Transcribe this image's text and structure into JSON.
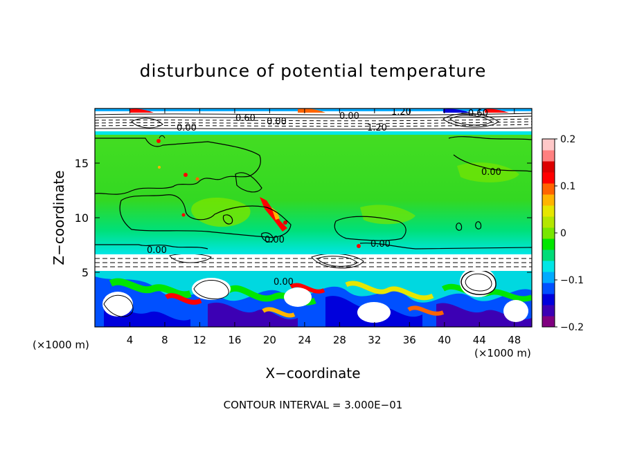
{
  "chart_data": {
    "type": "heatmap",
    "title": "disturbunce of potential temperature",
    "xlabel": "X−coordinate",
    "ylabel": "Z−coordinate",
    "x_unit_left": "(×1000 m)",
    "x_unit_right": "(×1000 m)",
    "xlim": [
      0,
      50
    ],
    "ylim": [
      0,
      20
    ],
    "x_ticks": [
      4,
      8,
      12,
      16,
      20,
      24,
      28,
      32,
      36,
      40,
      44,
      48
    ],
    "y_ticks": [
      5,
      10,
      15
    ],
    "colorbar": {
      "min": -0.2,
      "max": 0.2,
      "tick_values": [
        0.2,
        0.1,
        0,
        -0.1,
        -0.2
      ],
      "tick_labels": [
        "0.2",
        "0.1",
        "0",
        "−0.1",
        "−0.2"
      ],
      "colors": [
        "#800080",
        "#3c00b4",
        "#0000dc",
        "#0050ff",
        "#00aaff",
        "#00e6e6",
        "#00dc78",
        "#00e600",
        "#78e600",
        "#b4e600",
        "#e6e600",
        "#ffb400",
        "#ff6400",
        "#ff0000",
        "#dc0000",
        "#ff8080",
        "#ffc8c8"
      ]
    },
    "contour_labels": [
      "0.00",
      "0.00",
      "0.00",
      "0.00",
      "0.00",
      "0.00",
      "0.00",
      "0.00",
      "0.60",
      "1.20",
      "1.20",
      "−0.60"
    ],
    "footer": "CONTOUR INTERVAL = 3.000E−01",
    "grid": false,
    "legend": "colorbar-right"
  }
}
